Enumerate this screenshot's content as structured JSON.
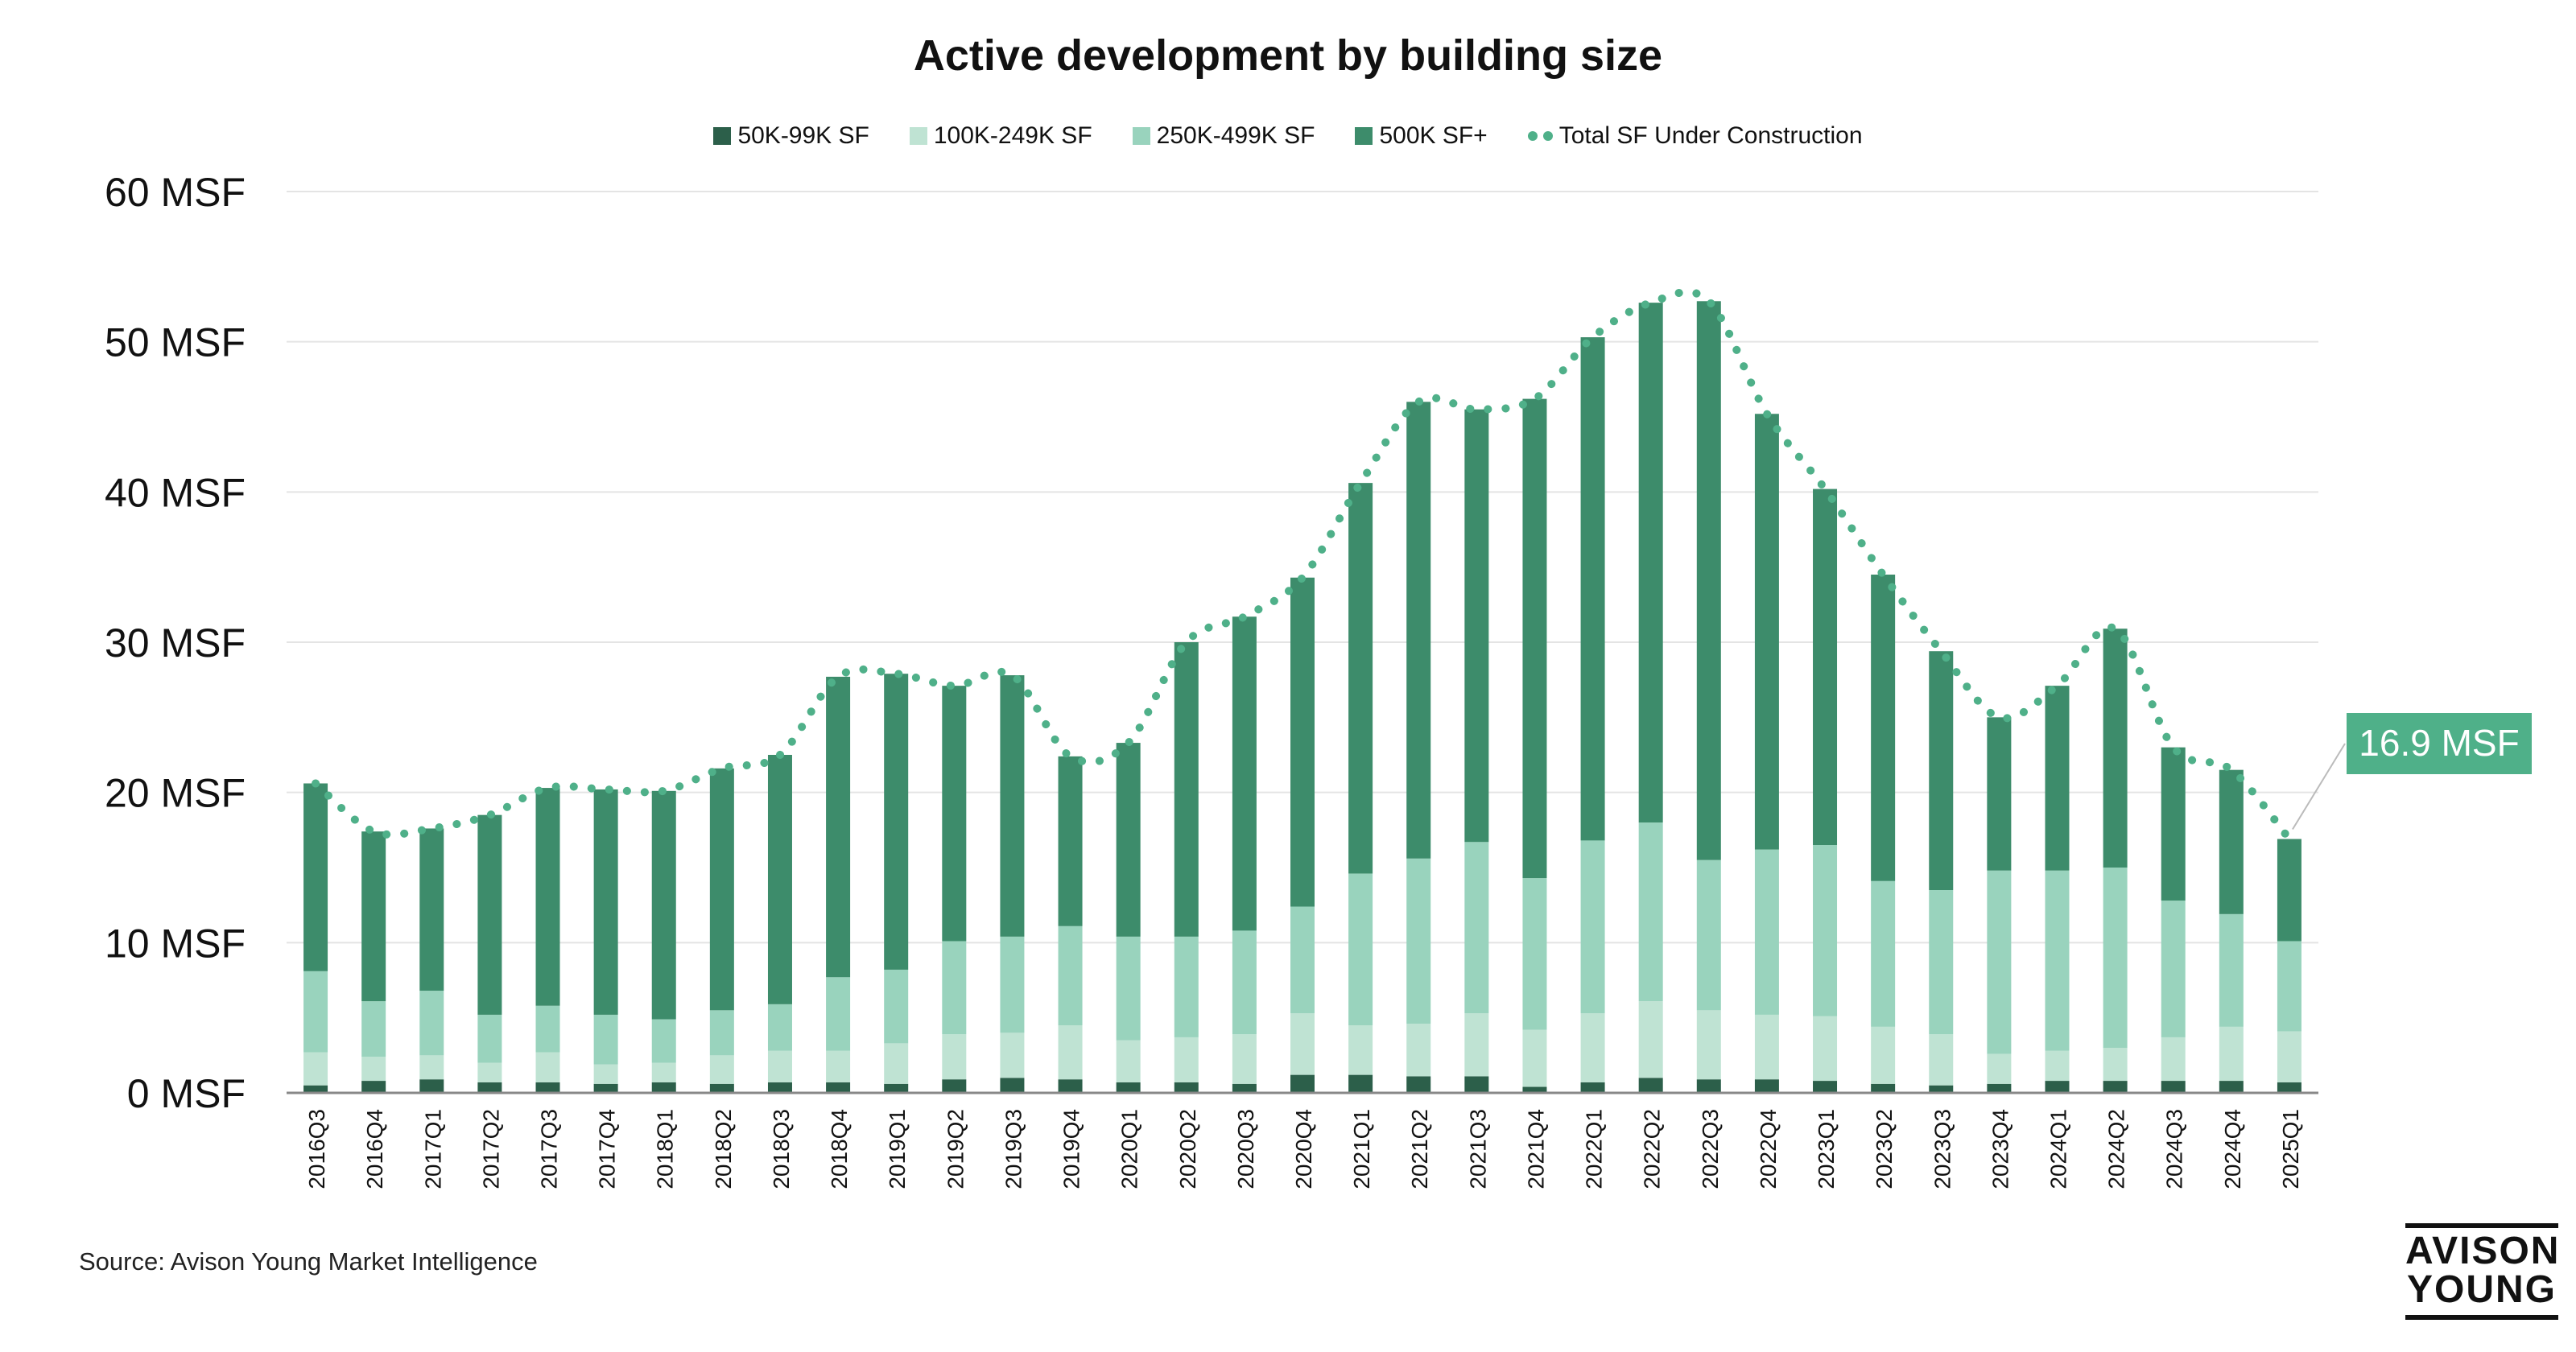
{
  "chart_data": {
    "type": "bar",
    "stacked": true,
    "title": "Active development by building size",
    "xlabel": "",
    "ylabel": "",
    "ylim": [
      0,
      60
    ],
    "yticks": [
      "0 MSF",
      "10 MSF",
      "20 MSF",
      "30 MSF",
      "40 MSF",
      "50 MSF",
      "60 MSF"
    ],
    "grid": true,
    "legend_position": "top",
    "categories": [
      "2016Q3",
      "2016Q4",
      "2017Q1",
      "2017Q2",
      "2017Q3",
      "2017Q4",
      "2018Q1",
      "2018Q2",
      "2018Q3",
      "2018Q4",
      "2019Q1",
      "2019Q2",
      "2019Q3",
      "2019Q4",
      "2020Q1",
      "2020Q2",
      "2020Q3",
      "2020Q4",
      "2021Q1",
      "2021Q2",
      "2021Q3",
      "2021Q4",
      "2022Q1",
      "2022Q2",
      "2022Q3",
      "2022Q4",
      "2023Q1",
      "2023Q2",
      "2023Q3",
      "2023Q4",
      "2024Q1",
      "2024Q2",
      "2024Q3",
      "2024Q4",
      "2025Q1"
    ],
    "series": [
      {
        "name": "50K-99K SF",
        "kind": "bar",
        "color": "#2c5f4a",
        "values": [
          0.5,
          0.8,
          0.9,
          0.7,
          0.7,
          0.6,
          0.7,
          0.6,
          0.7,
          0.7,
          0.6,
          0.9,
          1.0,
          0.9,
          0.7,
          0.7,
          0.6,
          1.2,
          1.2,
          1.1,
          1.1,
          0.4,
          0.7,
          1.0,
          0.9,
          0.9,
          0.8,
          0.6,
          0.5,
          0.6,
          0.8,
          0.8,
          0.8,
          0.8,
          0.7
        ]
      },
      {
        "name": "100K-249K SF",
        "kind": "bar",
        "color": "#bfe3d3",
        "values": [
          2.2,
          1.6,
          1.6,
          1.3,
          2.0,
          1.3,
          1.3,
          1.9,
          2.1,
          2.1,
          2.7,
          3.0,
          3.0,
          3.6,
          2.8,
          3.0,
          3.3,
          4.1,
          3.3,
          3.5,
          4.2,
          3.8,
          4.6,
          5.1,
          4.6,
          4.3,
          4.3,
          3.8,
          3.4,
          2.0,
          2.0,
          2.2,
          2.9,
          3.6,
          3.4
        ]
      },
      {
        "name": "250K-499K SF",
        "kind": "bar",
        "color": "#99d3bd",
        "values": [
          5.4,
          3.7,
          4.3,
          3.2,
          3.1,
          3.3,
          2.9,
          3.0,
          3.1,
          4.9,
          4.9,
          6.2,
          6.4,
          6.6,
          6.9,
          6.7,
          6.9,
          7.1,
          10.1,
          11.0,
          11.4,
          10.1,
          11.5,
          11.9,
          10.0,
          11.0,
          11.4,
          9.7,
          9.6,
          12.2,
          12.0,
          12.0,
          9.1,
          7.5,
          6.0
        ]
      },
      {
        "name": "500K SF+",
        "kind": "bar",
        "color": "#3d8c6b",
        "values": [
          12.5,
          11.3,
          10.8,
          13.3,
          14.5,
          15.0,
          15.2,
          16.1,
          16.6,
          20.0,
          19.7,
          17.0,
          17.4,
          11.3,
          12.9,
          19.6,
          20.9,
          21.9,
          26.0,
          30.4,
          28.8,
          31.9,
          33.5,
          34.6,
          37.2,
          29.0,
          23.7,
          20.4,
          15.9,
          10.2,
          12.3,
          15.9,
          10.2,
          9.6,
          6.8
        ]
      },
      {
        "name": "Total SF Under Construction",
        "kind": "line",
        "style": "dotted",
        "color": "#4fb089",
        "values": [
          20.6,
          17.4,
          17.6,
          18.5,
          20.3,
          20.2,
          20.1,
          21.6,
          22.5,
          27.7,
          27.9,
          27.1,
          27.8,
          22.4,
          23.3,
          30.0,
          31.7,
          34.3,
          40.6,
          46.0,
          45.5,
          46.2,
          50.3,
          52.6,
          52.7,
          45.2,
          40.2,
          34.5,
          29.4,
          25.0,
          27.1,
          30.9,
          23.0,
          21.5,
          16.9
        ]
      }
    ],
    "annotations": [
      {
        "text": "16.9 MSF",
        "category": "2025Q1",
        "value": 16.9
      }
    ],
    "source": "Source: Avison Young Market Intelligence",
    "logo": [
      "AVISON",
      "YOUNG"
    ],
    "colors": {
      "grid": "#e4e4e4",
      "axis": "#888888",
      "callout_bg": "#4fb089",
      "callout_text": "#ffffff"
    }
  }
}
